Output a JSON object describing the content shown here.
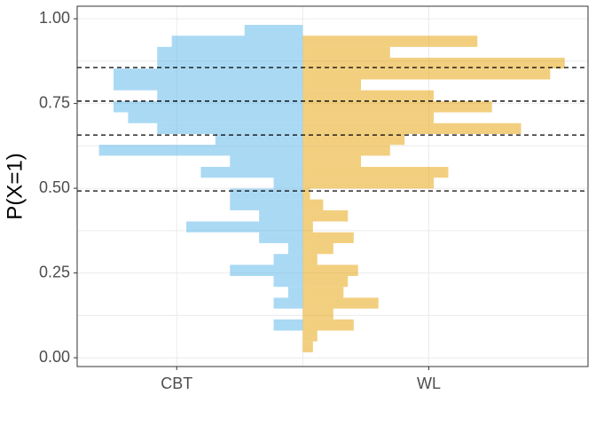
{
  "chart_data": {
    "type": "histogram",
    "orientation": "horizontal",
    "ylabel": "P(X=1)",
    "bins": [
      0.016,
      0.048,
      0.08,
      0.113,
      0.145,
      0.177,
      0.209,
      0.241,
      0.274,
      0.306,
      0.338,
      0.37,
      0.402,
      0.435,
      0.467,
      0.499,
      0.531,
      0.563,
      0.596,
      0.628,
      0.66,
      0.692,
      0.724,
      0.757,
      0.789,
      0.821,
      0.853,
      0.885,
      0.917,
      0.95,
      0.982
    ],
    "series": [
      {
        "name": "CBT",
        "color": "#56b4e9",
        "values": [
          0,
          0,
          -2,
          0,
          -2,
          -1,
          -2,
          -5,
          -2,
          -1,
          -3,
          -8,
          -3,
          -5,
          -5,
          -2,
          -7,
          -5,
          -14,
          -6,
          -10,
          -12,
          -13,
          -10,
          -13,
          -13,
          -10,
          -10,
          -9,
          -4
        ]
      },
      {
        "name": "WL",
        "color": "#e69f00",
        "values": [
          0.7,
          1,
          3.5,
          2.1,
          5.2,
          2.8,
          3.1,
          3.8,
          1,
          2.1,
          3.5,
          0.7,
          3.1,
          1.4,
          0.5,
          9,
          10,
          4,
          6,
          7,
          15,
          9,
          13,
          9,
          4,
          17,
          18,
          6,
          12,
          0
        ]
      }
    ],
    "xlim": [
      -15.5,
      19.6
    ],
    "xticks": [
      {
        "value": -8.66,
        "label": "CBT"
      },
      {
        "value": 8.66,
        "label": "WL"
      }
    ],
    "ylim": [
      -0.026,
      1.037
    ],
    "yticks": [
      {
        "value": 0,
        "label": "0.00"
      },
      {
        "value": 0.25,
        "label": "0.25"
      },
      {
        "value": 0.5,
        "label": "0.50"
      },
      {
        "value": 0.75,
        "label": "0.75"
      },
      {
        "value": 1,
        "label": "1.00"
      }
    ],
    "hlines": [
      0.856,
      0.757,
      0.657,
      0.492
    ],
    "grid": true
  }
}
